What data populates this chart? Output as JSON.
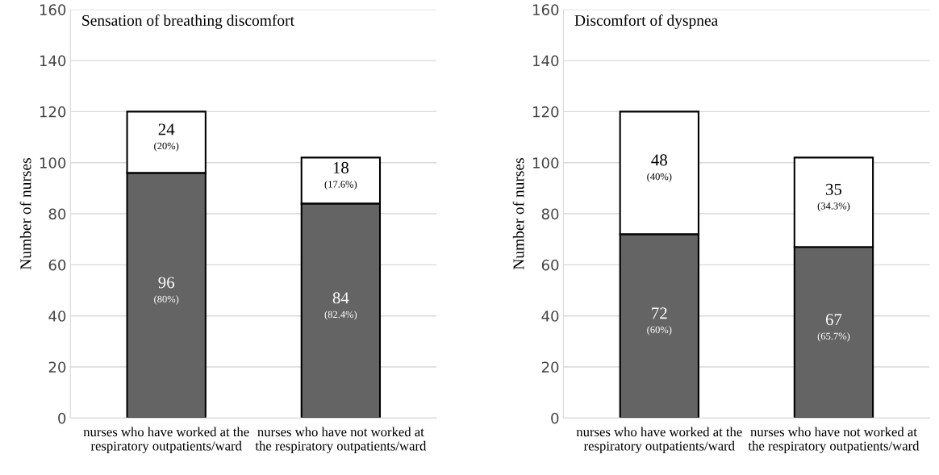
{
  "chart_data": [
    {
      "type": "bar",
      "stacked": true,
      "title": "Sensation of breathing discomfort",
      "ylabel": "Number of nurses",
      "categories": [
        "nurses who have worked at the respiratory outpatients/ward",
        "nurses who have not worked at the respiratory outpatients/ward"
      ],
      "series": [
        {
          "color": "#646464",
          "values": [
            96,
            84
          ],
          "value_labels": [
            "96\n(80%)",
            "84\n(82.4%)"
          ]
        },
        {
          "color": "#ffffff",
          "values": [
            24,
            18
          ],
          "value_labels": [
            "24\n(20%)",
            "18\n(17.6%)"
          ]
        }
      ],
      "ylim": [
        0,
        160
      ],
      "yticks": [
        0,
        20,
        40,
        60,
        80,
        100,
        120,
        140,
        160
      ],
      "grid": "y",
      "legend": false
    },
    {
      "type": "bar",
      "stacked": true,
      "title": "Discomfort of dyspnea",
      "ylabel": "Number of nurses",
      "categories": [
        "nurses who have worked at the respiratory outpatients/ward",
        "nurses who have not worked at the respiratory outpatients/ward"
      ],
      "series": [
        {
          "color": "#646464",
          "values": [
            72,
            67
          ],
          "value_labels": [
            "72\n(60%)",
            "67\n(65.7%)"
          ]
        },
        {
          "color": "#ffffff",
          "values": [
            48,
            35
          ],
          "value_labels": [
            "48\n(40%)",
            "35\n(34.3%)"
          ]
        }
      ],
      "ylim": [
        0,
        160
      ],
      "yticks": [
        0,
        20,
        40,
        60,
        80,
        100,
        120,
        140,
        160
      ],
      "grid": "y",
      "legend": false
    }
  ]
}
